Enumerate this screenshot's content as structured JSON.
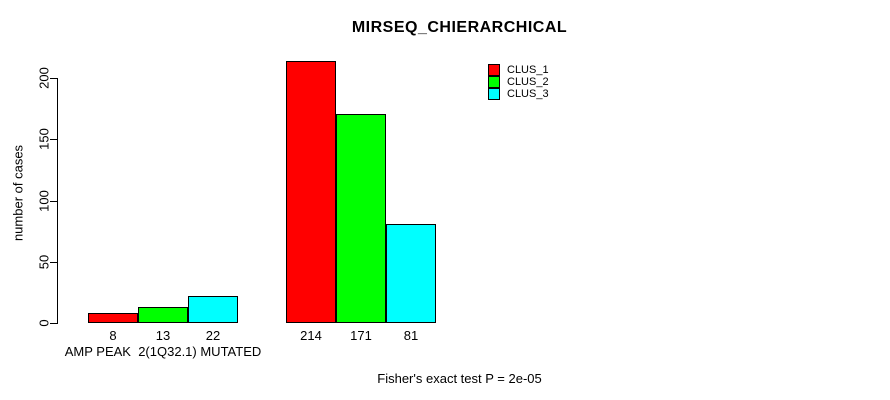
{
  "chart_data": {
    "type": "bar",
    "title": "MIRSEQ_CHIERARCHICAL",
    "ylabel": "number of cases",
    "xlabel": "",
    "ylim": [
      0,
      215
    ],
    "yticks": [
      0,
      50,
      100,
      150,
      200
    ],
    "grid": false,
    "legend_position": "top-right",
    "groups": [
      {
        "label": "AMP PEAK  2(1Q32.1) MUTATED"
      },
      {
        "label": ""
      }
    ],
    "series": [
      {
        "name": "CLUS_1",
        "color": "#ff0000",
        "values": [
          8,
          214
        ]
      },
      {
        "name": "CLUS_2",
        "color": "#00ff00",
        "values": [
          13,
          171
        ]
      },
      {
        "name": "CLUS_3",
        "color": "#00ffff",
        "values": [
          22,
          81
        ]
      }
    ],
    "footnote": "Fisher's exact test P = 2e-05"
  }
}
